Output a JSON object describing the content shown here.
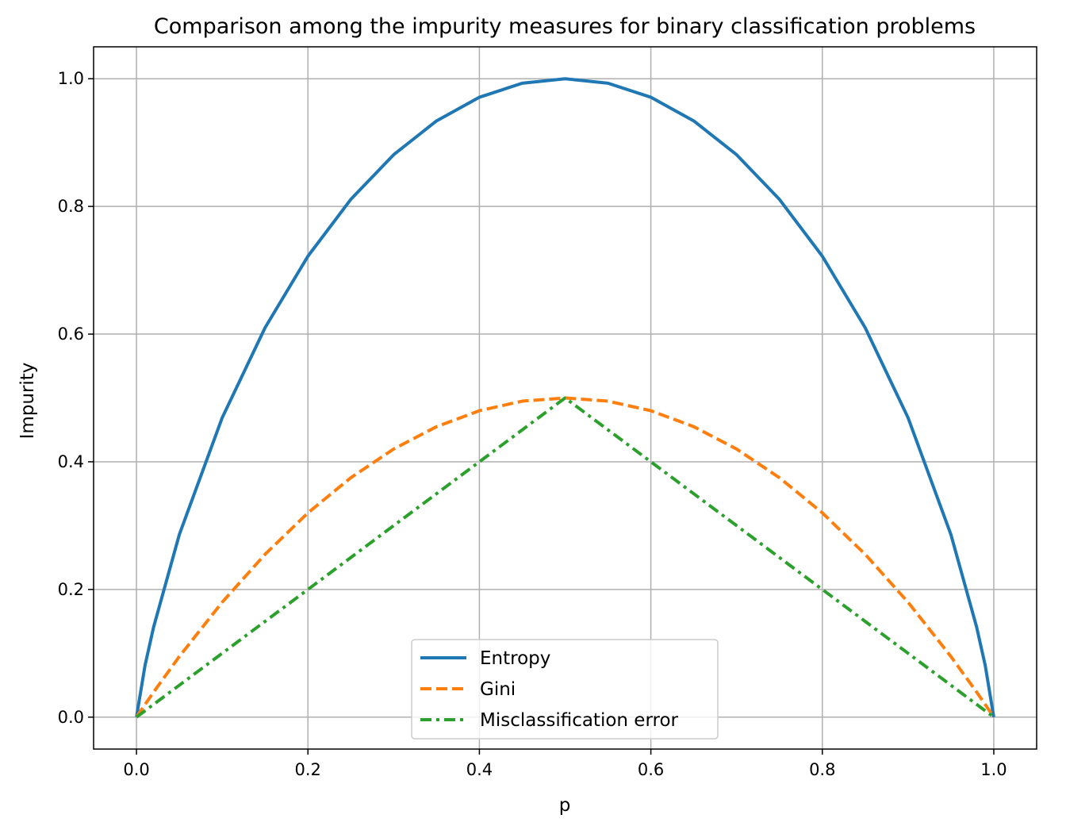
{
  "chart_data": {
    "type": "line",
    "title": "Comparison among the impurity measures for binary classification problems",
    "xlabel": "p",
    "ylabel": "Impurity",
    "xlim": [
      -0.05,
      1.05
    ],
    "ylim": [
      -0.05,
      1.05
    ],
    "xticks": [
      "0.0",
      "0.2",
      "0.4",
      "0.6",
      "0.8",
      "1.0"
    ],
    "yticks": [
      "0.0",
      "0.2",
      "0.4",
      "0.6",
      "0.8",
      "1.0"
    ],
    "grid": true,
    "legend_position": "lower-center",
    "x": [
      0.0,
      0.01,
      0.02,
      0.05,
      0.1,
      0.15,
      0.2,
      0.25,
      0.3,
      0.35,
      0.4,
      0.45,
      0.5,
      0.55,
      0.6,
      0.65,
      0.7,
      0.75,
      0.8,
      0.85,
      0.9,
      0.95,
      0.98,
      0.99,
      1.0
    ],
    "series": [
      {
        "name": "Entropy",
        "color": "#1f77b4",
        "style": "solid",
        "values": [
          0.0,
          0.081,
          0.141,
          0.286,
          0.469,
          0.61,
          0.722,
          0.811,
          0.881,
          0.934,
          0.971,
          0.993,
          1.0,
          0.993,
          0.971,
          0.934,
          0.881,
          0.811,
          0.722,
          0.61,
          0.469,
          0.286,
          0.141,
          0.081,
          0.0
        ]
      },
      {
        "name": "Gini",
        "color": "#ff7f0e",
        "style": "dashed",
        "values": [
          0.0,
          0.0198,
          0.0392,
          0.095,
          0.18,
          0.255,
          0.32,
          0.375,
          0.42,
          0.455,
          0.48,
          0.495,
          0.5,
          0.495,
          0.48,
          0.455,
          0.42,
          0.375,
          0.32,
          0.255,
          0.18,
          0.095,
          0.0392,
          0.0198,
          0.0
        ]
      },
      {
        "name": "Misclassification error",
        "color": "#2ca02c",
        "style": "dashdot",
        "values": [
          0.0,
          0.01,
          0.02,
          0.05,
          0.1,
          0.15,
          0.2,
          0.25,
          0.3,
          0.35,
          0.4,
          0.45,
          0.5,
          0.45,
          0.4,
          0.35,
          0.3,
          0.25,
          0.2,
          0.15,
          0.1,
          0.05,
          0.02,
          0.01,
          0.0
        ]
      }
    ]
  }
}
